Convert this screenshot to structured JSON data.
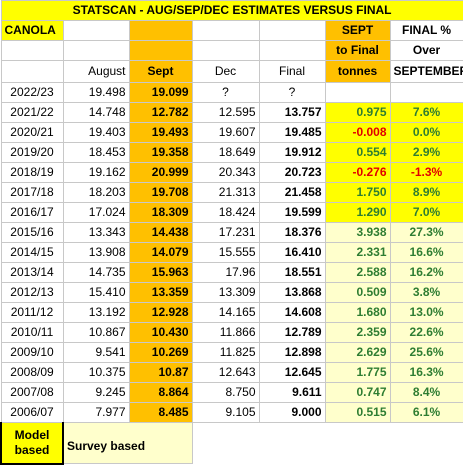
{
  "title": "STATSCAN - AUG/SEP/DEC ESTIMATES VERSUS FINAL",
  "header": {
    "crop": "CANOLA",
    "sept_to_final_line1": "SEPT",
    "sept_to_final_line2": "to Final",
    "tonnes": "tonnes",
    "final_pct": "FINAL %",
    "over_line1": "Over",
    "over_line2": "SEPTEMBER",
    "august": "August",
    "sept": "Sept",
    "dec": "Dec",
    "final": "Final"
  },
  "rows": [
    {
      "year": "2022/23",
      "aug": "19.498",
      "sept": "19.099",
      "dec": "?",
      "final": "?",
      "diff": "",
      "pct": ""
    },
    {
      "year": "2021/22",
      "aug": "14.748",
      "sept": "12.782",
      "dec": "12.595",
      "final": "13.757",
      "diff": "0.975",
      "pct": "7.6%"
    },
    {
      "year": "2020/21",
      "aug": "19.403",
      "sept": "19.493",
      "dec": "19.607",
      "final": "19.485",
      "diff": "-0.008",
      "pct": "0.0%"
    },
    {
      "year": "2019/20",
      "aug": "18.453",
      "sept": "19.358",
      "dec": "18.649",
      "final": "19.912",
      "diff": "0.554",
      "pct": "2.9%"
    },
    {
      "year": "2018/19",
      "aug": "19.162",
      "sept": "20.999",
      "dec": "20.343",
      "final": "20.723",
      "diff": "-0.276",
      "pct": "-1.3%"
    },
    {
      "year": "2017/18",
      "aug": "18.203",
      "sept": "19.708",
      "dec": "21.313",
      "final": "21.458",
      "diff": "1.750",
      "pct": "8.9%"
    },
    {
      "year": "2016/17",
      "aug": "17.024",
      "sept": "18.309",
      "dec": "18.424",
      "final": "19.599",
      "diff": "1.290",
      "pct": "7.0%"
    },
    {
      "year": "2015/16",
      "aug": "13.343",
      "sept": "14.438",
      "dec": "17.231",
      "final": "18.376",
      "diff": "3.938",
      "pct": "27.3%"
    },
    {
      "year": "2014/15",
      "aug": "13.908",
      "sept": "14.079",
      "dec": "15.555",
      "final": "16.410",
      "diff": "2.331",
      "pct": "16.6%"
    },
    {
      "year": "2013/14",
      "aug": "14.735",
      "sept": "15.963",
      "dec": "17.96",
      "final": "18.551",
      "diff": "2.588",
      "pct": "16.2%"
    },
    {
      "year": "2012/13",
      "aug": "15.410",
      "sept": "13.359",
      "dec": "13.309",
      "final": "13.868",
      "diff": "0.509",
      "pct": "3.8%"
    },
    {
      "year": "2011/12",
      "aug": "13.192",
      "sept": "12.928",
      "dec": "14.165",
      "final": "14.608",
      "diff": "1.680",
      "pct": "13.0%"
    },
    {
      "year": "2010/11",
      "aug": "10.867",
      "sept": "10.430",
      "dec": "11.866",
      "final": "12.789",
      "diff": "2.359",
      "pct": "22.6%"
    },
    {
      "year": "2009/10",
      "aug": "9.541",
      "sept": "10.269",
      "dec": "11.825",
      "final": "12.898",
      "diff": "2.629",
      "pct": "25.6%"
    },
    {
      "year": "2008/09",
      "aug": "10.375",
      "sept": "10.87",
      "dec": "12.643",
      "final": "12.645",
      "diff": "1.775",
      "pct": "16.3%"
    },
    {
      "year": "2007/08",
      "aug": "9.245",
      "sept": "8.864",
      "dec": "8.750",
      "final": "9.611",
      "diff": "0.747",
      "pct": "8.4%"
    },
    {
      "year": "2006/07",
      "aug": "7.977",
      "sept": "8.485",
      "dec": "9.105",
      "final": "9.000",
      "diff": "0.515",
      "pct": "6.1%"
    }
  ],
  "footer": {
    "model_line1": "Model",
    "model_line2": "based",
    "survey": "Survey based"
  },
  "colors": {
    "title_bg": "#ffff00",
    "sept_col_bg": "#ffc000",
    "model_rows_bg": "#ffff00",
    "survey_rows_bg": "#ffffcc",
    "positive_text": "#2e7d32",
    "negative_text": "#e00000"
  }
}
